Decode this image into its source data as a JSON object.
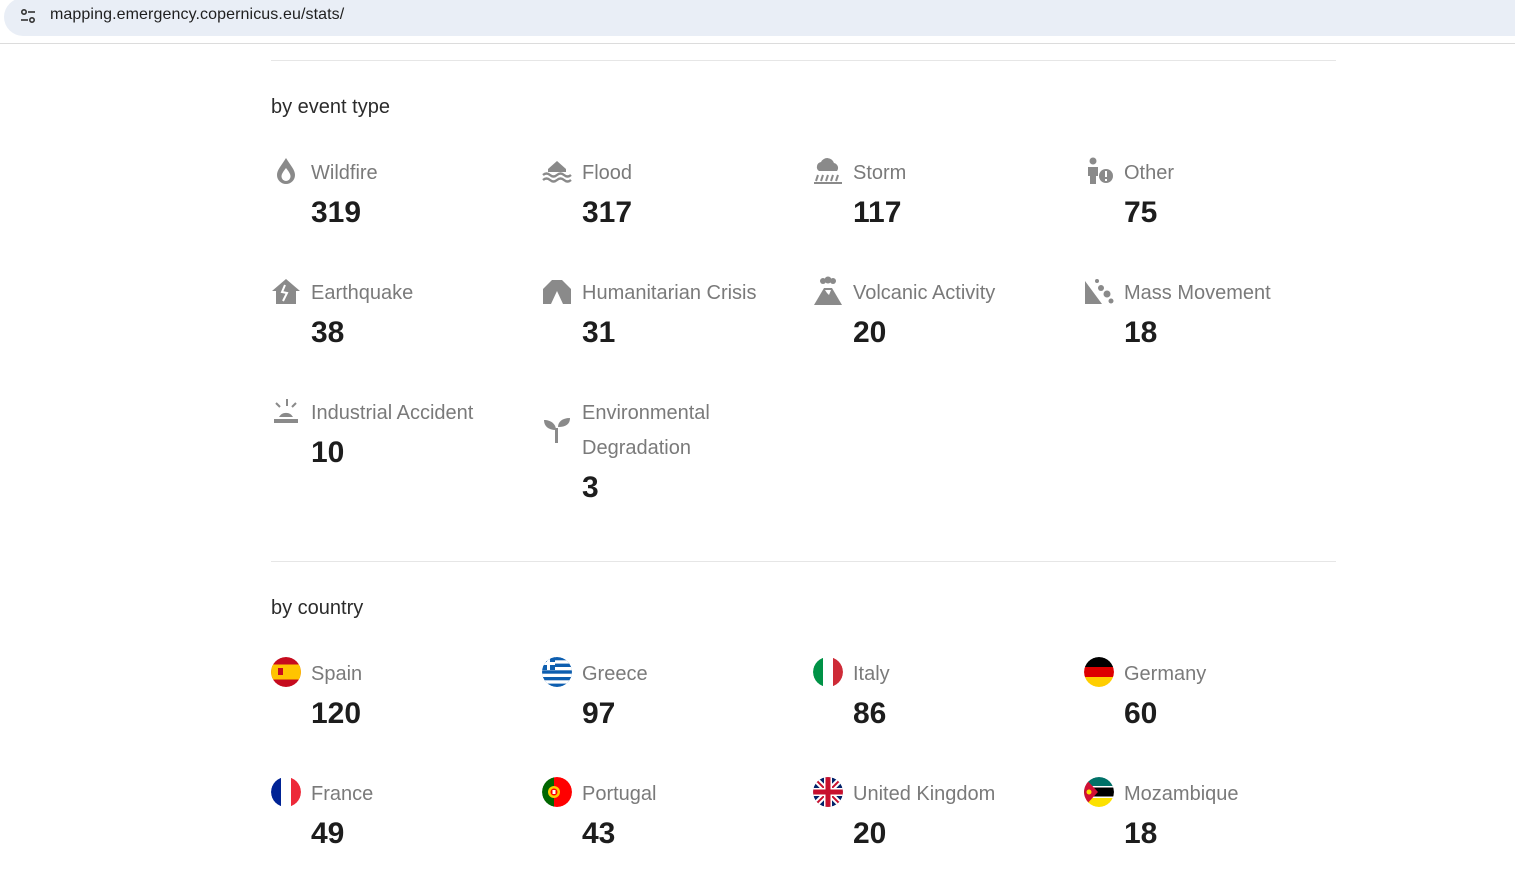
{
  "browser": {
    "url": "mapping.emergency.copernicus.eu/stats/"
  },
  "sections": {
    "event_type": {
      "title": "by event type",
      "items": [
        {
          "label": "Wildfire",
          "value": "319",
          "icon": "wildfire-icon"
        },
        {
          "label": "Flood",
          "value": "317",
          "icon": "flood-icon"
        },
        {
          "label": "Storm",
          "value": "117",
          "icon": "storm-icon"
        },
        {
          "label": "Other",
          "value": "75",
          "icon": "other-icon"
        },
        {
          "label": "Earthquake",
          "value": "38",
          "icon": "earthquake-icon"
        },
        {
          "label": "Humanitarian Crisis",
          "value": "31",
          "icon": "humanitarian-crisis-icon"
        },
        {
          "label": "Volcanic Activity",
          "value": "20",
          "icon": "volcanic-activity-icon"
        },
        {
          "label": "Mass Movement",
          "value": "18",
          "icon": "mass-movement-icon"
        },
        {
          "label": "Industrial Accident",
          "value": "10",
          "icon": "industrial-accident-icon"
        },
        {
          "label": "Environmental Degradation",
          "value": "3",
          "icon": "environmental-degradation-icon"
        }
      ]
    },
    "country": {
      "title": "by country",
      "items": [
        {
          "label": "Spain",
          "value": "120",
          "icon": "spain-flag-icon"
        },
        {
          "label": "Greece",
          "value": "97",
          "icon": "greece-flag-icon"
        },
        {
          "label": "Italy",
          "value": "86",
          "icon": "italy-flag-icon"
        },
        {
          "label": "Germany",
          "value": "60",
          "icon": "germany-flag-icon"
        },
        {
          "label": "France",
          "value": "49",
          "icon": "france-flag-icon"
        },
        {
          "label": "Portugal",
          "value": "43",
          "icon": "portugal-flag-icon"
        },
        {
          "label": "United Kingdom",
          "value": "20",
          "icon": "united-kingdom-flag-icon"
        },
        {
          "label": "Mozambique",
          "value": "18",
          "icon": "mozambique-flag-icon"
        }
      ]
    }
  },
  "colors": {
    "icon_gray": "#8a8a8a",
    "label_gray": "#7a7a7a",
    "value_dark": "#1d1d1d"
  }
}
